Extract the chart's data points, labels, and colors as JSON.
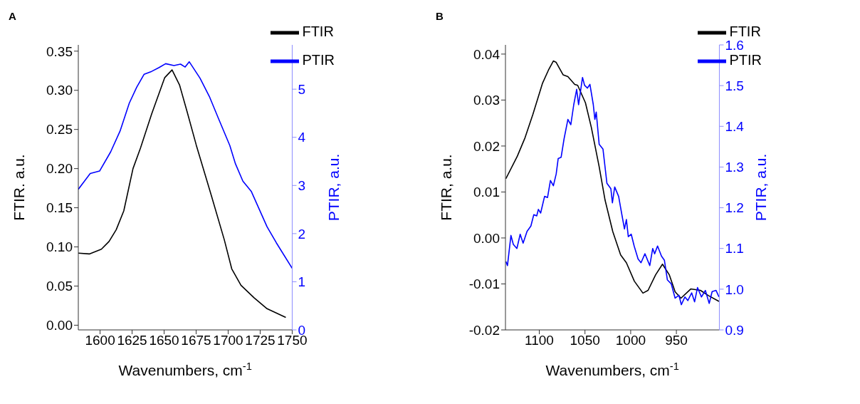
{
  "chart_data": [
    {
      "type": "line",
      "title": "A",
      "xlabel": "Wavenumbers, cm$^{-1}$",
      "ylabel": "FTIR. a.u.",
      "y2label": "PTIR, a.u.",
      "xlim": [
        1583,
        1750
      ],
      "xticks": [
        1600,
        1625,
        1650,
        1675,
        1700,
        1725,
        1750
      ],
      "ylim": [
        -0.006,
        0.358
      ],
      "yticks": [
        {
          "value": 0,
          "label": "0.00"
        },
        0.05,
        {
          "value": 0.1,
          "label": "0.10"
        },
        0.15,
        {
          "value": 0.2,
          "label": "0.20"
        },
        0.25,
        {
          "value": 0.3,
          "label": "0.30"
        },
        0.35
      ],
      "y2lim": [
        0,
        5.92
      ],
      "y2ticks": [
        0,
        1,
        2,
        3,
        4,
        5
      ],
      "legend": "top right",
      "grid": false,
      "series": [
        {
          "name": "FTIR",
          "color": "#000000",
          "x": [
            1583,
            1591.6,
            1601,
            1607,
            1612.6,
            1618.5,
            1625.7,
            1631.5,
            1640.3,
            1650.4,
            1656.2,
            1662,
            1667.9,
            1675.1,
            1686.8,
            1697,
            1702.8,
            1710,
            1720.2,
            1730.4,
            1745
          ],
          "values": [
            0.092,
            0.091,
            0.097,
            0.107,
            0.122,
            0.146,
            0.2,
            0.226,
            0.27,
            0.316,
            0.326,
            0.307,
            0.273,
            0.23,
            0.166,
            0.109,
            0.072,
            0.051,
            0.035,
            0.021,
            0.01
          ]
        },
        {
          "name": "PTIR",
          "color": "#0000ff",
          "axis": "y2",
          "x": [
            1583,
            1592.3,
            1599.6,
            1608.3,
            1615.6,
            1622.8,
            1628.6,
            1634.4,
            1640.3,
            1646.1,
            1651.2,
            1657.7,
            1662.8,
            1666.4,
            1669.6,
            1678,
            1685.3,
            1692.6,
            1701.3,
            1705.7,
            1711.5,
            1718,
            1730.4,
            1737.6,
            1750
          ],
          "values": [
            2.92,
            3.25,
            3.3,
            3.7,
            4.13,
            4.71,
            5.04,
            5.31,
            5.37,
            5.45,
            5.53,
            5.49,
            5.52,
            5.46,
            5.57,
            5.23,
            4.85,
            4.38,
            3.83,
            3.45,
            3.09,
            2.88,
            2.14,
            1.81,
            1.28
          ]
        }
      ]
    },
    {
      "type": "line",
      "title": "B",
      "xlabel": "Wavenumbers, cm$^{-1}$",
      "ylabel": "FTIR, a.u.",
      "y2label": "PTIR, a.u.",
      "xlim": [
        1137,
        903
      ],
      "xticks": [
        1100,
        1050,
        1000,
        950
      ],
      "ylim": [
        -0.02,
        0.042
      ],
      "yticks": [
        -0.02,
        -0.01,
        {
          "value": 0,
          "label": "0.00"
        },
        0.01,
        0.02,
        0.03,
        0.04
      ],
      "y2lim": [
        0.9,
        1.6
      ],
      "y2ticks": [
        0.9,
        {
          "value": 1,
          "label": "1.0"
        },
        1.1,
        1.2,
        1.3,
        1.4,
        1.5,
        1.6
      ],
      "legend": "top right",
      "grid": false,
      "series": [
        {
          "name": "FTIR",
          "color": "#000000",
          "x": [
            1136.5,
            1124,
            1115.6,
            1107,
            1096.4,
            1090,
            1084.6,
            1081.5,
            1074,
            1068.7,
            1061.2,
            1058,
            1049.5,
            1043,
            1034.5,
            1028,
            1019.6,
            1011,
            1004.7,
            996,
            986.6,
            981,
            972.7,
            965.2,
            957.8,
            951.4,
            945,
            934.3,
            923.7,
            915.2,
            903.4
          ],
          "values": [
            0.0129,
            0.0178,
            0.0218,
            0.0269,
            0.0337,
            0.0365,
            0.0385,
            0.0382,
            0.0355,
            0.0351,
            0.0334,
            0.0332,
            0.0294,
            0.024,
            0.0155,
            0.0082,
            0.0014,
            -0.0037,
            -0.0054,
            -0.0094,
            -0.012,
            -0.0114,
            -0.008,
            -0.0057,
            -0.008,
            -0.0117,
            -0.0131,
            -0.0111,
            -0.0114,
            -0.0125,
            -0.0138
          ]
        },
        {
          "name": "PTIR",
          "color": "#0000ff",
          "axis": "y2",
          "x": [
            1136.5,
            1134.8,
            1131,
            1128.4,
            1124.5,
            1120.9,
            1117.7,
            1113.4,
            1109.2,
            1106,
            1102.8,
            1101,
            1098.5,
            1094.2,
            1091,
            1087.8,
            1084.6,
            1081.5,
            1079.3,
            1076.1,
            1072.9,
            1068.7,
            1065.5,
            1062.3,
            1059.1,
            1057,
            1052.7,
            1050.5,
            1047.3,
            1044.6,
            1040.9,
            1039.2,
            1037.7,
            1034.5,
            1030.3,
            1026,
            1021.7,
            1020,
            1017.5,
            1013.2,
            1009.4,
            1006.8,
            1004.7,
            1002.6,
            999.4,
            996.2,
            991.9,
            988.7,
            984.4,
            979.1,
            975.9,
            973.8,
            970.6,
            966.3,
            963.1,
            959.9,
            955.6,
            951.4,
            947.2,
            944.6,
            940.7,
            937.5,
            933.3,
            930.1,
            926.9,
            922.6,
            918.3,
            914.1,
            910.9,
            906.6,
            903.4
          ],
          "values": [
            1.068,
            1.058,
            1.132,
            1.11,
            1.1,
            1.135,
            1.113,
            1.142,
            1.155,
            1.183,
            1.18,
            1.196,
            1.187,
            1.228,
            1.225,
            1.267,
            1.254,
            1.283,
            1.321,
            1.324,
            1.369,
            1.417,
            1.404,
            1.453,
            1.491,
            1.453,
            1.52,
            1.501,
            1.494,
            1.503,
            1.453,
            1.417,
            1.435,
            1.356,
            1.344,
            1.26,
            1.247,
            1.212,
            1.251,
            1.228,
            1.18,
            1.148,
            1.171,
            1.129,
            1.135,
            1.106,
            1.074,
            1.065,
            1.087,
            1.058,
            1.1,
            1.087,
            1.106,
            1.081,
            1.071,
            1.023,
            1.013,
            0.978,
            0.985,
            0.962,
            0.981,
            0.972,
            0.991,
            0.969,
            1.004,
            0.981,
            0.997,
            0.965,
            0.994,
            0.997,
            0.981
          ]
        }
      ]
    }
  ]
}
